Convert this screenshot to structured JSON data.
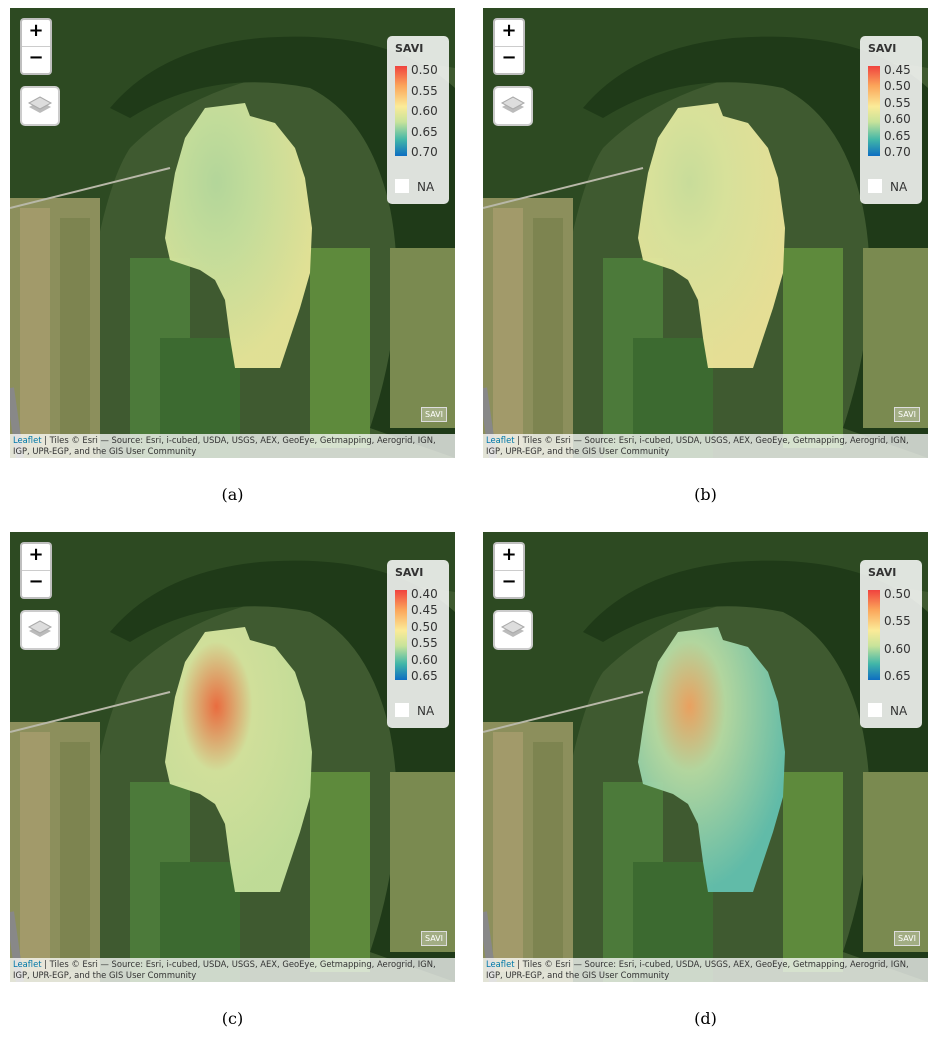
{
  "panels": [
    {
      "label": "(a)",
      "zoom_in": "+",
      "zoom_out": "−",
      "legend": {
        "title": "SAVI",
        "ticks": [
          "0.50",
          "0.55",
          "0.60",
          "0.65",
          "0.70"
        ],
        "na": "NA"
      },
      "layer_tag": "SAVI",
      "attribution": {
        "link": "Leaflet",
        "text": "| Tiles © Esri — Source: Esri, i-cubed, USDA, USGS, AEX, GeoEye, Getmapping, Aerogrid, IGN, IGP, UPR-EGP, and the GIS User Community"
      }
    },
    {
      "label": "(b)",
      "zoom_in": "+",
      "zoom_out": "−",
      "legend": {
        "title": "SAVI",
        "ticks": [
          "0.45",
          "0.50",
          "0.55",
          "0.60",
          "0.65",
          "0.70"
        ],
        "na": "NA"
      },
      "layer_tag": "SAVI",
      "attribution": {
        "link": "Leaflet",
        "text": "| Tiles © Esri — Source: Esri, i-cubed, USDA, USGS, AEX, GeoEye, Getmapping, Aerogrid, IGN, IGP, UPR-EGP, and the GIS User Community"
      }
    },
    {
      "label": "(c)",
      "zoom_in": "+",
      "zoom_out": "−",
      "legend": {
        "title": "SAVI",
        "ticks": [
          "0.40",
          "0.45",
          "0.50",
          "0.55",
          "0.60",
          "0.65"
        ],
        "na": "NA"
      },
      "layer_tag": "SAVI",
      "attribution": {
        "link": "Leaflet",
        "text": "| Tiles © Esri — Source: Esri, i-cubed, USDA, USGS, AEX, GeoEye, Getmapping, Aerogrid, IGN, IGP, UPR-EGP, and the GIS User Community"
      }
    },
    {
      "label": "(d)",
      "zoom_in": "+",
      "zoom_out": "−",
      "legend": {
        "title": "SAVI",
        "ticks": [
          "0.50",
          "0.55",
          "0.60",
          "0.65"
        ],
        "na": "NA"
      },
      "layer_tag": "SAVI",
      "attribution": {
        "link": "Leaflet",
        "text": "| Tiles © Esri — Source: Esri, i-cubed, USDA, USGS, AEX, GeoEye, Getmapping, Aerogrid, IGN, IGP, UPR-EGP, and the GIS User Community"
      }
    }
  ]
}
